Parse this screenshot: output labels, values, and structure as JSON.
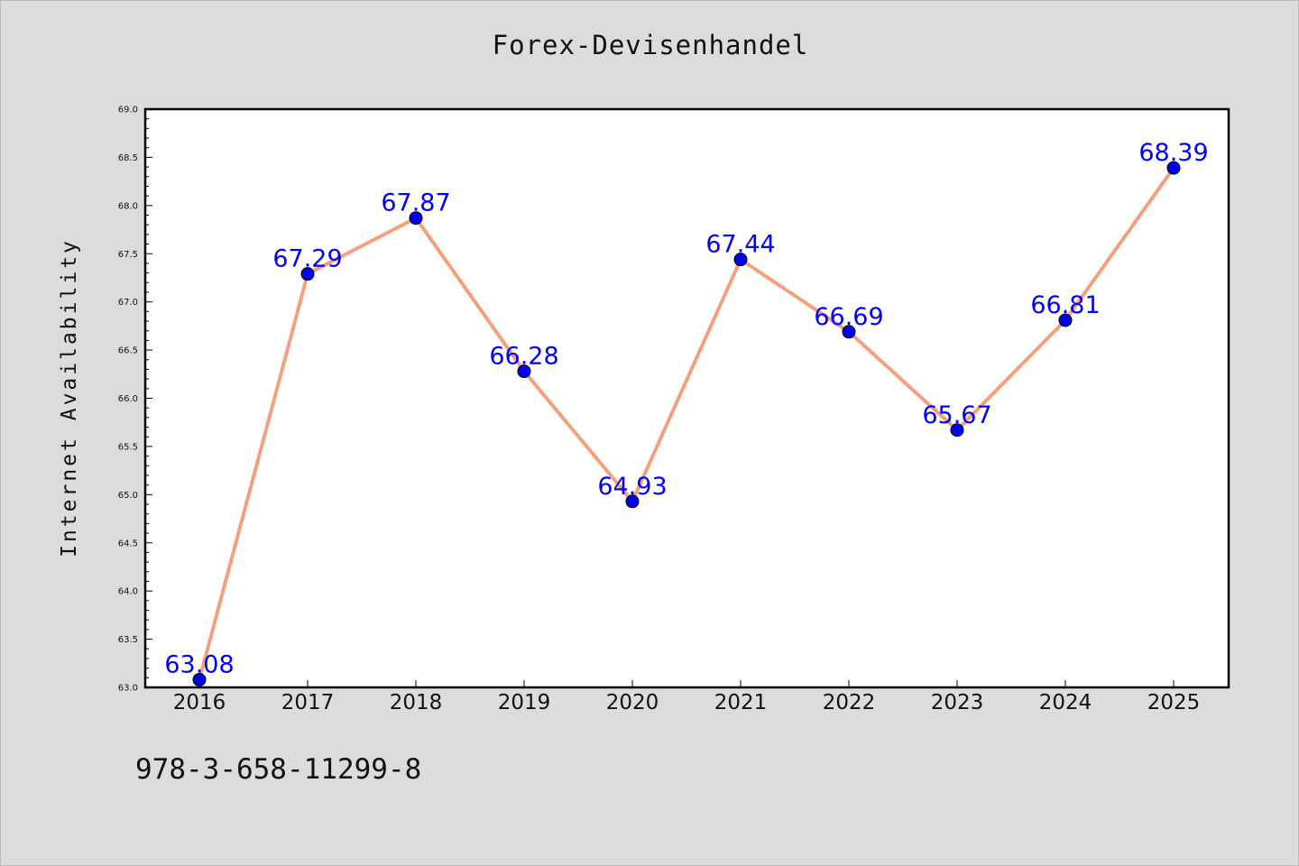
{
  "title": "Forex-Devisenhandel",
  "footer_code": "978-3-658-11299-8",
  "colors": {
    "background": "#dcdcdc",
    "plot_area": "#ffffff",
    "line": "#f4a07c",
    "marker": "#0000ee",
    "data_label": "#0000ff"
  },
  "chart_data": {
    "type": "line",
    "title": "Forex-Devisenhandel",
    "xlabel": "",
    "ylabel": "Internet Availability",
    "categories": [
      "2016",
      "2017",
      "2018",
      "2019",
      "2020",
      "2021",
      "2022",
      "2023",
      "2024",
      "2025"
    ],
    "series": [
      {
        "values": [
          63.08,
          67.29,
          67.87,
          66.28,
          64.93,
          67.44,
          66.69,
          65.67,
          66.81,
          68.39
        ],
        "labels": [
          "63.08",
          "67.29",
          "67.87",
          "66.28",
          "64.93",
          "67.44",
          "66.69",
          "65.67",
          "66.81",
          "68.39"
        ]
      }
    ],
    "ylim": [
      63.0,
      69.0
    ],
    "yticks": [
      "63.0",
      "63.5",
      "64.0",
      "64.5",
      "65.0",
      "65.5",
      "66.0",
      "66.5",
      "67.0",
      "67.5",
      "68.0",
      "68.5",
      "69.0"
    ],
    "grid": false,
    "legend": "none"
  }
}
